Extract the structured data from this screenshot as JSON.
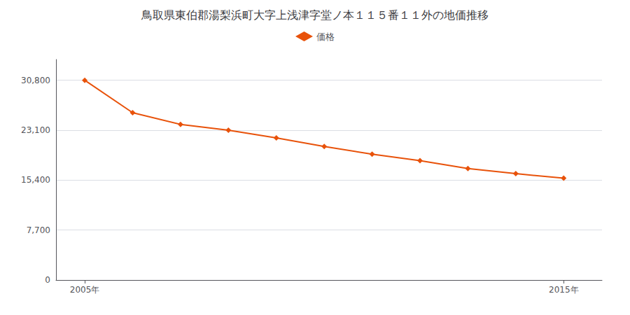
{
  "chart_data": {
    "type": "line",
    "title": "鳥取県東伯郡湯梨浜町大字上浅津字堂ノ本１１５番１１外の地価推移",
    "x": [
      2005,
      2006,
      2007,
      2008,
      2009,
      2010,
      2011,
      2012,
      2013,
      2014,
      2015
    ],
    "series": [
      {
        "name": "価格",
        "color": "#e8520a",
        "marker": "diamond",
        "values": [
          30800,
          25800,
          24000,
          23100,
          21900,
          20600,
          19400,
          18400,
          17200,
          16400,
          15700
        ]
      }
    ],
    "xlim": [
      2004.4,
      2015.8
    ],
    "xticks": [
      {
        "value": 2005,
        "label": "2005年"
      },
      {
        "value": 2015,
        "label": "2015年"
      }
    ],
    "ylim": [
      0,
      34000
    ],
    "yticks": [
      0,
      {
        "value": 7700,
        "label": "7,700"
      },
      {
        "value": 15400,
        "label": "15,400"
      },
      {
        "value": 23100,
        "label": "23,100"
      },
      {
        "value": 30800,
        "label": "30,800"
      }
    ],
    "grid": true,
    "legend": "top"
  }
}
